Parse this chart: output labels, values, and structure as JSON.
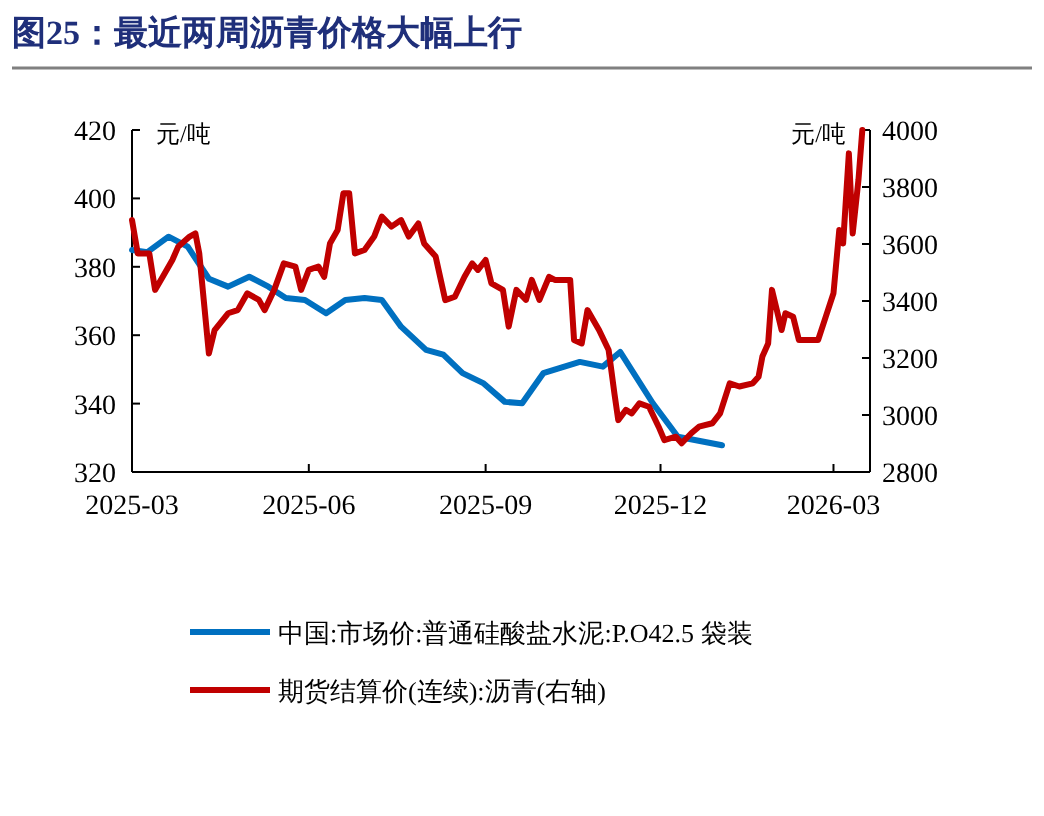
{
  "chart_data": {
    "type": "line",
    "title": "图25：最近两周沥青价格大幅上行",
    "ylabel": "元/吨",
    "y2label": "元/吨",
    "xlim": [
      "2025-03-01",
      "2026-03-20"
    ],
    "xticks": [
      "2025-03",
      "2025-06",
      "2025-09",
      "2025-12",
      "2026-03"
    ],
    "ylim": [
      320,
      420
    ],
    "yticks": [
      320,
      340,
      360,
      380,
      400,
      420
    ],
    "y2lim": [
      2800,
      4000
    ],
    "y2ticks": [
      2800,
      3000,
      3200,
      3400,
      3600,
      3800,
      4000
    ],
    "grid": false,
    "legend": "bottom",
    "line_style": "solid",
    "marker": "none",
    "series": [
      {
        "name": "中国:市场价:普通硅酸盐水泥:P.O42.5 袋装",
        "color": "#0070c0",
        "x": [
          "2025-03-01",
          "2025-03-09",
          "2025-03-20",
          "2025-03-30",
          "2025-04-10",
          "2025-04-20",
          "2025-05-01",
          "2025-05-11",
          "2025-05-20",
          "2025-05-30",
          "2025-06-10",
          "2025-06-20",
          "2025-06-30",
          "2025-07-09",
          "2025-07-19",
          "2025-08-01",
          "2025-08-10",
          "2025-08-20",
          "2025-08-31",
          "2025-09-11",
          "2025-09-20",
          "2025-10-01",
          "2025-10-20",
          "2025-11-01",
          "2025-11-10",
          "2025-11-27",
          "2025-12-10",
          "2026-01-02"
        ],
        "values": [
          384.9,
          384.3,
          388.8,
          385.9,
          376.5,
          374.2,
          377.1,
          374.2,
          370.9,
          370.3,
          366.4,
          370.3,
          370.9,
          370.3,
          362.5,
          355.7,
          354.3,
          348.9,
          345.9,
          340.5,
          340.1,
          348.9,
          352.2,
          350.8,
          355.1,
          340.1,
          330.3,
          327.8
        ]
      },
      {
        "name": "期货结算价(连续):沥青(右轴)",
        "color": "#c00000",
        "axis": "y2",
        "x": [
          "2025-03-01",
          "2025-03-04",
          "2025-03-10",
          "2025-03-13",
          "2025-03-17",
          "2025-03-22",
          "2025-03-25",
          "2025-03-31",
          "2025-04-03",
          "2025-04-05",
          "2025-04-10",
          "2025-04-13",
          "2025-04-20",
          "2025-04-25",
          "2025-04-30",
          "2025-05-06",
          "2025-05-09",
          "2025-05-14",
          "2025-05-19",
          "2025-05-25",
          "2025-05-28",
          "2025-06-01",
          "2025-06-06",
          "2025-06-09",
          "2025-06-12",
          "2025-06-16",
          "2025-06-19",
          "2025-06-22",
          "2025-06-25",
          "2025-06-30",
          "2025-07-05",
          "2025-07-09",
          "2025-07-14",
          "2025-07-19",
          "2025-07-23",
          "2025-07-28",
          "2025-07-31",
          "2025-08-06",
          "2025-08-11",
          "2025-08-16",
          "2025-08-21",
          "2025-08-25",
          "2025-08-28",
          "2025-09-01",
          "2025-09-04",
          "2025-09-10",
          "2025-09-13",
          "2025-09-17",
          "2025-09-22",
          "2025-09-25",
          "2025-09-29",
          "2025-10-04",
          "2025-10-07",
          "2025-10-12",
          "2025-10-15",
          "2025-10-17",
          "2025-10-21",
          "2025-10-24",
          "2025-10-30",
          "2025-11-04",
          "2025-11-07",
          "2025-11-09",
          "2025-11-13",
          "2025-11-16",
          "2025-11-20",
          "2025-11-25",
          "2025-11-30",
          "2025-12-03",
          "2025-12-09",
          "2025-12-12",
          "2025-12-17",
          "2025-12-21",
          "2025-12-28",
          "2026-01-01",
          "2026-01-06",
          "2026-01-11",
          "2026-01-18",
          "2026-01-21",
          "2026-01-23",
          "2026-01-26",
          "2026-01-28",
          "2026-02-02",
          "2026-02-04",
          "2026-02-08",
          "2026-02-11",
          "2026-02-21",
          "2026-02-25",
          "2026-03-01",
          "2026-03-04",
          "2026-03-06",
          "2026-03-09",
          "2026-03-11",
          "2026-03-14",
          "2026-03-16"
        ],
        "values": [
          3684,
          3567,
          3567,
          3439,
          3485,
          3544,
          3590,
          3626,
          3637,
          3567,
          3216,
          3298,
          3357,
          3368,
          3427,
          3404,
          3368,
          3439,
          3532,
          3521,
          3439,
          3509,
          3521,
          3485,
          3602,
          3649,
          3778,
          3778,
          3567,
          3579,
          3626,
          3696,
          3661,
          3684,
          3626,
          3672,
          3602,
          3556,
          3403,
          3415,
          3485,
          3532,
          3509,
          3544,
          3462,
          3439,
          3310,
          3439,
          3404,
          3474,
          3404,
          3485,
          3474,
          3474,
          3474,
          3263,
          3251,
          3368,
          3298,
          3228,
          3076,
          2982,
          3018,
          3006,
          3041,
          3029,
          2959,
          2912,
          2924,
          2901,
          2936,
          2959,
          2971,
          3006,
          3111,
          3100,
          3111,
          3134,
          3205,
          3251,
          3439,
          3298,
          3357,
          3345,
          3263,
          3263,
          3345,
          3427,
          3649,
          3602,
          3918,
          3637,
          3825,
          4000
        ]
      }
    ]
  }
}
